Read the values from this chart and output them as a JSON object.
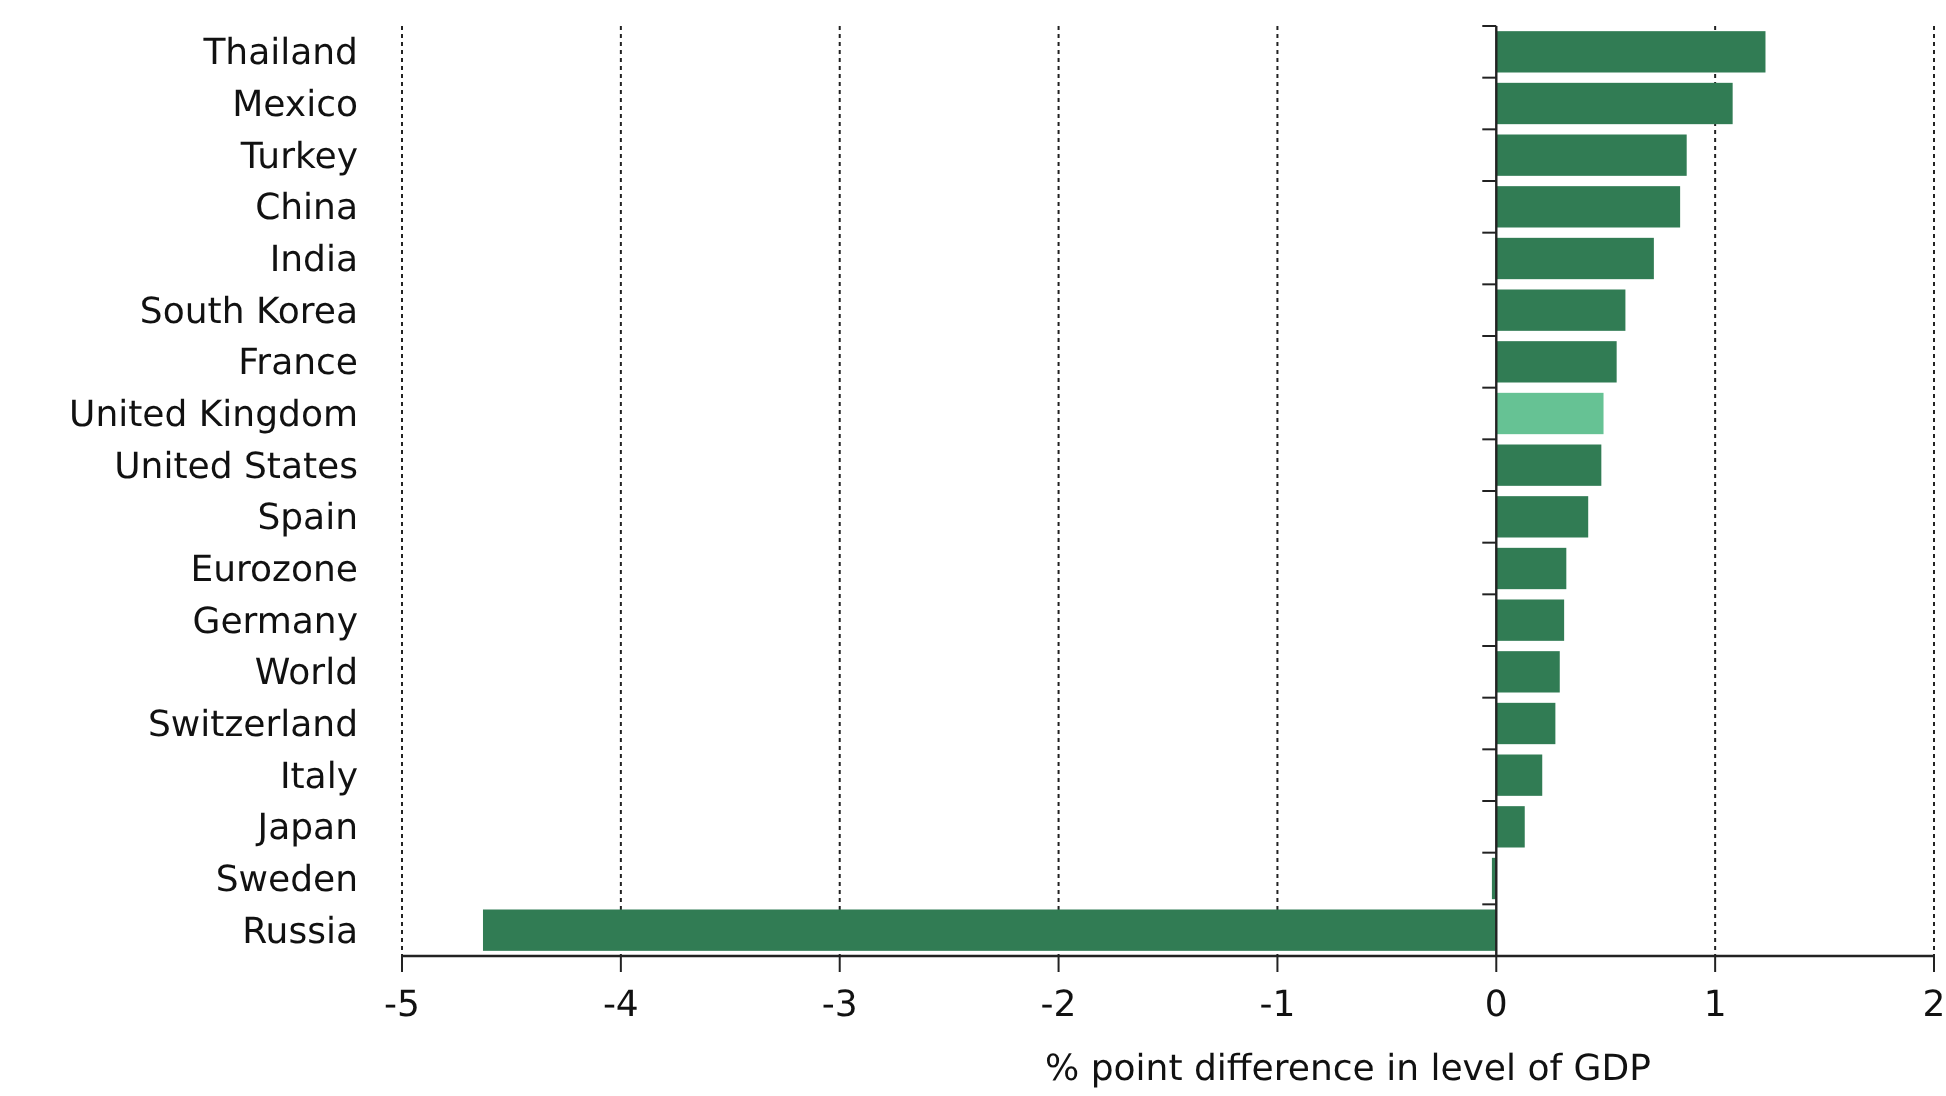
{
  "chart_data": {
    "type": "bar",
    "orientation": "horizontal",
    "xlabel": "% point difference in level of GDP",
    "categories": [
      "Thailand",
      "Mexico",
      "Turkey",
      "China",
      "India",
      "South Korea",
      "France",
      "United Kingdom",
      "United States",
      "Spain",
      "Eurozone",
      "Germany",
      "World",
      "Switzerland",
      "Italy",
      "Japan",
      "Sweden",
      "Russia"
    ],
    "values": [
      1.23,
      1.08,
      0.87,
      0.84,
      0.72,
      0.59,
      0.55,
      0.49,
      0.48,
      0.42,
      0.32,
      0.31,
      0.29,
      0.27,
      0.21,
      0.13,
      -0.02,
      -4.63
    ],
    "colors": [
      "#317c54",
      "#317c54",
      "#317c54",
      "#317c54",
      "#317c54",
      "#317c54",
      "#317c54",
      "#66c294",
      "#317c54",
      "#317c54",
      "#317c54",
      "#317c54",
      "#317c54",
      "#317c54",
      "#317c54",
      "#317c54",
      "#317c54",
      "#317c54"
    ],
    "xlim": [
      -5,
      2
    ],
    "xticks": [
      -5,
      -4,
      -3,
      -2,
      -1,
      0,
      1,
      2
    ],
    "grid": "x"
  }
}
